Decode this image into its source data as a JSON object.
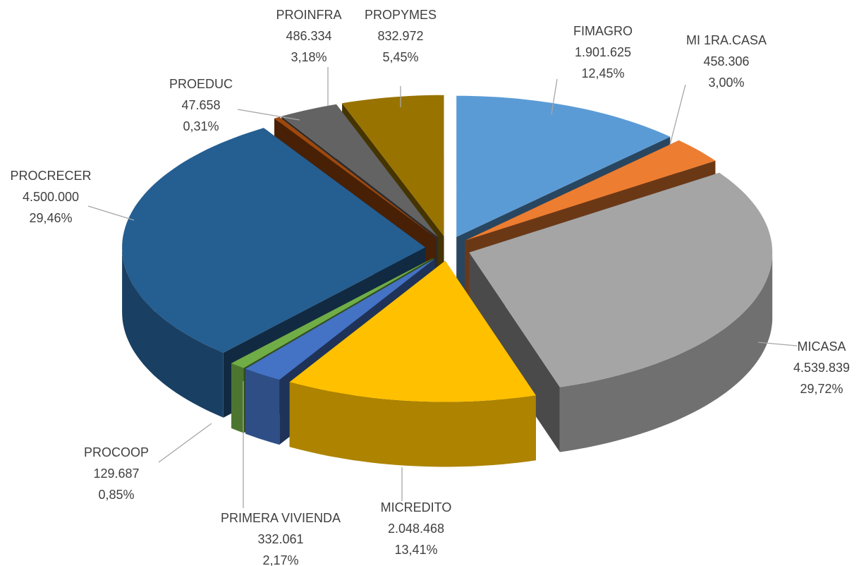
{
  "chart_data": {
    "type": "pie",
    "categories": [
      "FIMAGRO",
      "MI 1RA.CASA",
      "MICASA",
      "MICREDITO",
      "PRIMERA VIVIENDA",
      "PROCOOP",
      "PROCRECER",
      "PROEDUC",
      "PROINFRA",
      "PROPYMES"
    ],
    "values": [
      1901625,
      458306,
      4539839,
      2048468,
      332061,
      129687,
      4500000,
      47658,
      486334,
      832972
    ],
    "value_labels": [
      "1.901.625",
      "458.306",
      "4.539.839",
      "2.048.468",
      "332.061",
      "129.687",
      "4.500.000",
      "47.658",
      "486.334",
      "832.972"
    ],
    "percent_labels": [
      "12,45%",
      "3,00%",
      "29,72%",
      "13,41%",
      "2,17%",
      "0,85%",
      "29,46%",
      "0,31%",
      "3,18%",
      "5,45%"
    ],
    "colors": [
      "#5b9bd5",
      "#ed7d31",
      "#a5a5a5",
      "#ffc000",
      "#4472c4",
      "#70ad47",
      "#255e91",
      "#9e480e",
      "#636363",
      "#997300"
    ],
    "exploded": true,
    "three_d": true
  }
}
